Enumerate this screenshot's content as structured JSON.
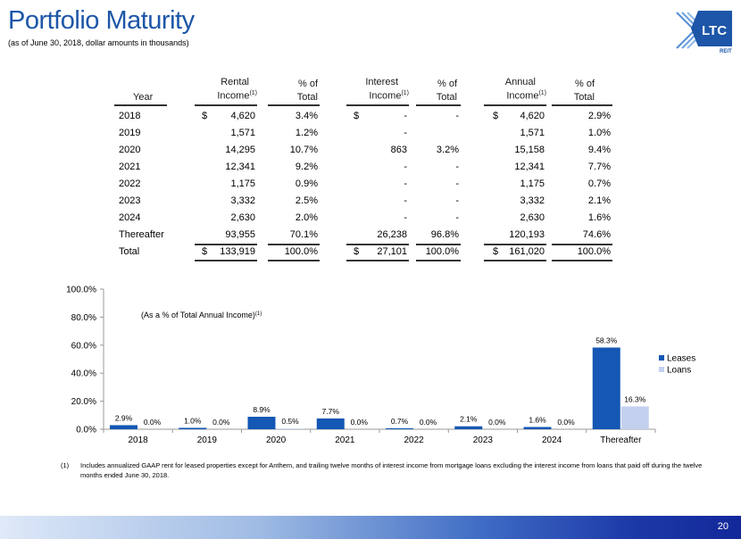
{
  "header": {
    "title": "Portfolio Maturity",
    "subtitle": "(as of June 30, 2018, dollar amounts in thousands)",
    "logo_text": "LTC",
    "logo_subtext": "REIT"
  },
  "table": {
    "headers": {
      "year": "Year",
      "rental_line1": "Rental",
      "rental_line2": "Income",
      "pct1_line1": "% of",
      "pct1_line2": "Total",
      "interest_line1": "Interest",
      "interest_line2": "Income",
      "pct2_line1": "% of",
      "pct2_line2": "Total",
      "annual_line1": "Annual",
      "annual_line2": "Income",
      "pct3_line1": "% of",
      "pct3_line2": "Total",
      "footnote_mark": "(1)"
    },
    "rows": [
      {
        "year": "2018",
        "rental_dollar": "$",
        "rental": "4,620",
        "rental_pct": "3.4%",
        "interest_dollar": "$",
        "interest": "-",
        "interest_pct": "-",
        "annual_dollar": "$",
        "annual": "4,620",
        "annual_pct": "2.9%"
      },
      {
        "year": "2019",
        "rental_dollar": "",
        "rental": "1,571",
        "rental_pct": "1.2%",
        "interest_dollar": "",
        "interest": "-",
        "interest_pct": "",
        "annual_dollar": "",
        "annual": "1,571",
        "annual_pct": "1.0%"
      },
      {
        "year": "2020",
        "rental_dollar": "",
        "rental": "14,295",
        "rental_pct": "10.7%",
        "interest_dollar": "",
        "interest": "863",
        "interest_pct": "3.2%",
        "annual_dollar": "",
        "annual": "15,158",
        "annual_pct": "9.4%"
      },
      {
        "year": "2021",
        "rental_dollar": "",
        "rental": "12,341",
        "rental_pct": "9.2%",
        "interest_dollar": "",
        "interest": "-",
        "interest_pct": "-",
        "annual_dollar": "",
        "annual": "12,341",
        "annual_pct": "7.7%"
      },
      {
        "year": "2022",
        "rental_dollar": "",
        "rental": "1,175",
        "rental_pct": "0.9%",
        "interest_dollar": "",
        "interest": "-",
        "interest_pct": "-",
        "annual_dollar": "",
        "annual": "1,175",
        "annual_pct": "0.7%"
      },
      {
        "year": "2023",
        "rental_dollar": "",
        "rental": "3,332",
        "rental_pct": "2.5%",
        "interest_dollar": "",
        "interest": "-",
        "interest_pct": "-",
        "annual_dollar": "",
        "annual": "3,332",
        "annual_pct": "2.1%"
      },
      {
        "year": "2024",
        "rental_dollar": "",
        "rental": "2,630",
        "rental_pct": "2.0%",
        "interest_dollar": "",
        "interest": "-",
        "interest_pct": "-",
        "annual_dollar": "",
        "annual": "2,630",
        "annual_pct": "1.6%"
      },
      {
        "year": "Thereafter",
        "rental_dollar": "",
        "rental": "93,955",
        "rental_pct": "70.1%",
        "interest_dollar": "",
        "interest": "26,238",
        "interest_pct": "96.8%",
        "annual_dollar": "",
        "annual": "120,193",
        "annual_pct": "74.6%"
      }
    ],
    "total": {
      "year": "Total",
      "rental_dollar": "$",
      "rental": "133,919",
      "rental_pct": "100.0%",
      "interest_dollar": "$",
      "interest": "27,101",
      "interest_pct": "100.0%",
      "annual_dollar": "$",
      "annual": "161,020",
      "annual_pct": "100.0%"
    }
  },
  "chart_data": {
    "type": "bar",
    "title": "",
    "annotation": "(As a % of Total Annual Income)",
    "annotation_mark": "(1)",
    "categories": [
      "2018",
      "2019",
      "2020",
      "2021",
      "2022",
      "2023",
      "2024",
      "Thereafter"
    ],
    "series": [
      {
        "name": "Leases",
        "color": "#1457b4",
        "values": [
          2.9,
          1.0,
          8.9,
          7.7,
          0.7,
          2.1,
          1.6,
          58.3
        ],
        "labels": [
          "2.9%",
          "1.0%",
          "8.9%",
          "7.7%",
          "0.7%",
          "2.1%",
          "1.6%",
          "58.3%"
        ]
      },
      {
        "name": "Loans",
        "color": "#c3d1ee",
        "values": [
          0.0,
          0.0,
          0.5,
          0.0,
          0.0,
          0.0,
          0.0,
          16.3
        ],
        "labels": [
          "0.0%",
          "0.0%",
          "0.5%",
          "0.0%",
          "0.0%",
          "0.0%",
          "0.0%",
          "16.3%"
        ]
      }
    ],
    "yticks": [
      "0.0%",
      "20.0%",
      "40.0%",
      "60.0%",
      "80.0%",
      "100.0%"
    ],
    "ylim": [
      0,
      100
    ],
    "legend_position": "right",
    "xlabel": "",
    "ylabel": ""
  },
  "footnote": {
    "number": "(1)",
    "text": "Includes annualized GAAP rent for leased properties except for Anthem, and trailing twelve months of interest income from mortgage loans excluding the interest income from loans that paid off during the twelve months ended June 30, 2018."
  },
  "page_number": "20"
}
